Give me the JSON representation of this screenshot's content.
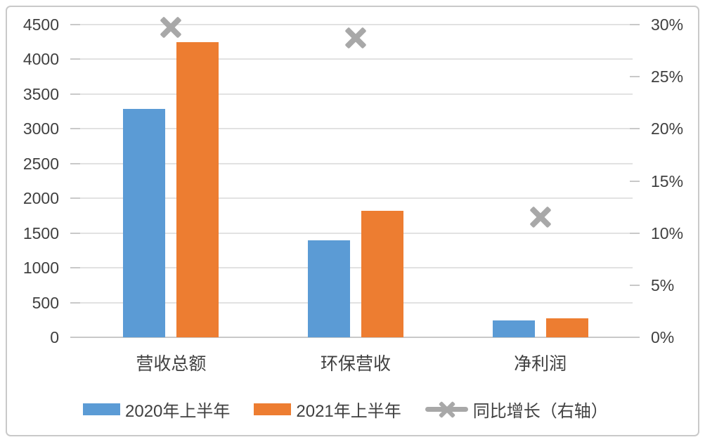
{
  "chart_data": {
    "type": "bar",
    "title": "",
    "categories": [
      "营收总额",
      "环保营收",
      "净利润"
    ],
    "series": [
      {
        "name": "2020年上半年",
        "type": "bar",
        "axis": "left",
        "color": "#5B9BD5",
        "values": [
          3290,
          1400,
          240
        ]
      },
      {
        "name": "2021年上半年",
        "type": "bar",
        "axis": "left",
        "color": "#ED7D31",
        "values": [
          4250,
          1820,
          270
        ]
      },
      {
        "name": "同比增长（右轴）",
        "type": "scatter",
        "marker": "x",
        "axis": "right",
        "color": "#A8A8A8",
        "unit": "%",
        "values": [
          29.7,
          28.7,
          11.5
        ]
      }
    ],
    "left_axis": {
      "min": 0,
      "max": 4500,
      "step": 500,
      "tick_labels": [
        "0",
        "500",
        "1000",
        "1500",
        "2000",
        "2500",
        "3000",
        "3500",
        "4000",
        "4500"
      ]
    },
    "right_axis": {
      "min": 0,
      "max": 30,
      "step": 5,
      "tick_labels": [
        "0%",
        "5%",
        "10%",
        "15%",
        "20%",
        "25%",
        "30%"
      ]
    },
    "grid": "horizontal",
    "legend_position": "bottom"
  },
  "colors": {
    "bar_2020": "#5B9BD5",
    "bar_2021": "#ED7D31",
    "growth_marker": "#A8A8A8",
    "gridline": "#E2E2E2",
    "axis_line": "#C9C9C9",
    "tick": "#C9C9C9",
    "text": "#404040",
    "border": "#C9C9C9",
    "background": "#FFFFFF"
  }
}
